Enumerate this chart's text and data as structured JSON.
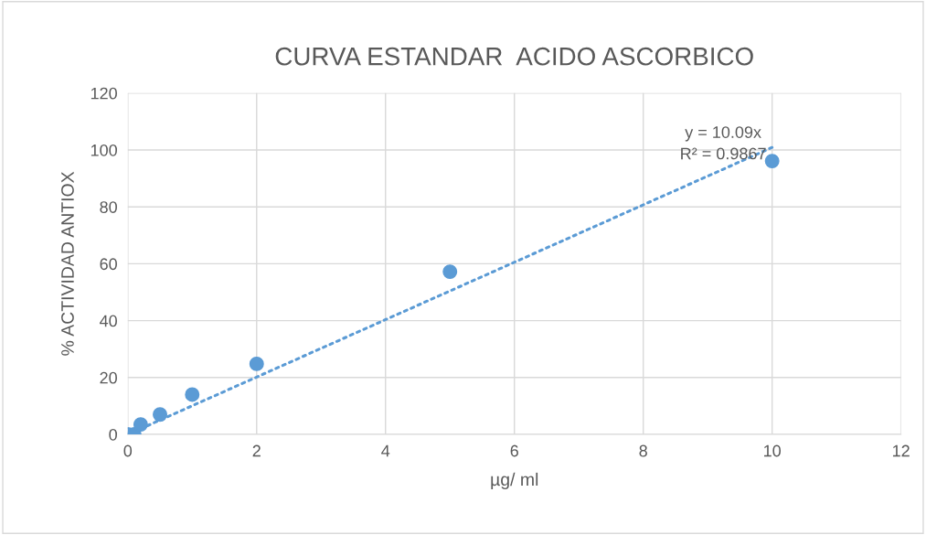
{
  "chart_data": {
    "type": "scatter",
    "title": "CURVA ESTANDAR  ACIDO ASCORBICO",
    "xlabel": "µg/ ml",
    "ylabel": "% ACTIVIDAD ANTIOX",
    "x": [
      0,
      0.1,
      0.2,
      0.5,
      1,
      2,
      5,
      10
    ],
    "series": [
      {
        "color": "#5b9bd5",
        "values": [
          0,
          0,
          3.5,
          7,
          14,
          24.8,
          57.2,
          96.1
        ],
        "marker": "circle"
      },
      {
        "type": "line",
        "color": "#5b9bd5",
        "x": [
          0.2,
          10
        ],
        "values": [
          2.0,
          100.9
        ],
        "line_style": "dotted",
        "marker": "none"
      }
    ],
    "annotations": [
      "y = 10.09x\nR² = 0.9867"
    ],
    "xlim": [
      0,
      12
    ],
    "xticks": [
      0,
      2,
      4,
      6,
      8,
      10,
      12
    ],
    "ylim": [
      0,
      120
    ],
    "yticks": [
      0,
      20,
      40,
      60,
      80,
      100,
      120
    ],
    "grid": true,
    "legend": false
  }
}
